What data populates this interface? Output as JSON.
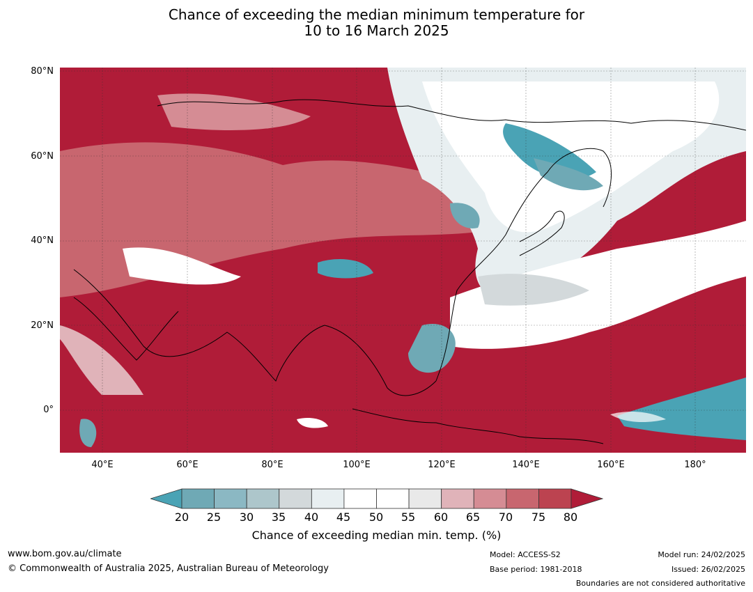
{
  "title": {
    "line1": "Chance of exceeding the median minimum temperature for",
    "line2": "10 to 16 March 2025"
  },
  "map": {
    "lat_labels": [
      "80°N",
      "60°N",
      "40°N",
      "20°N",
      "0°"
    ],
    "lon_labels": [
      "40°E",
      "60°E",
      "80°E",
      "100°E",
      "120°E",
      "140°E",
      "160°E",
      "180°"
    ],
    "lat_range": [
      -10,
      80
    ],
    "lon_range": [
      30,
      192
    ],
    "grid": true
  },
  "colorbar": {
    "ticks": [
      "20",
      "25",
      "30",
      "35",
      "40",
      "45",
      "50",
      "55",
      "60",
      "65",
      "70",
      "75",
      "80"
    ],
    "colors": [
      "#4aa3b5",
      "#6fa9b5",
      "#8bb8c3",
      "#adc6cb",
      "#d3d9db",
      "#e8eff1",
      "#ffffff",
      "#ffffff",
      "#e9e9e9",
      "#e0b3b9",
      "#d58c94",
      "#c8666f",
      "#bc4350",
      "#b01c38"
    ],
    "label": "Chance of exceeding median min. temp. (%)"
  },
  "footer": {
    "url": "www.bom.gov.au/climate",
    "copyright": "© Commonwealth of Australia 2025, Australian Bureau of Meteorology",
    "model": "Model: ACCESS-S2",
    "base_period": "Base period: 1981-2018",
    "model_run": "Model run: 24/02/2025",
    "issued": "Issued: 26/02/2025",
    "disclaimer": "Boundaries are not considered authoritative"
  }
}
